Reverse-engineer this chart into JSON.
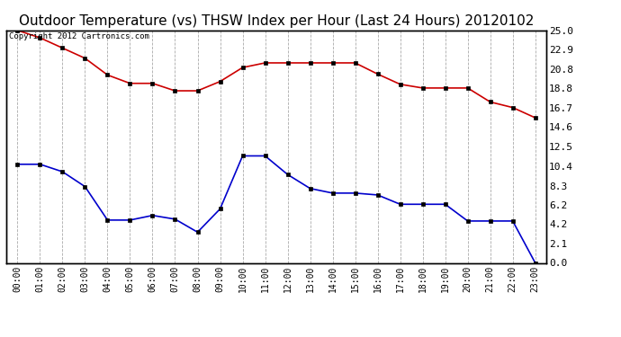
{
  "title": "Outdoor Temperature (vs) THSW Index per Hour (Last 24 Hours) 20120102",
  "copyright_text": "Copyright 2012 Cartronics.com",
  "x_labels": [
    "00:00",
    "01:00",
    "02:00",
    "03:00",
    "04:00",
    "05:00",
    "06:00",
    "07:00",
    "08:00",
    "09:00",
    "10:00",
    "11:00",
    "12:00",
    "13:00",
    "14:00",
    "15:00",
    "16:00",
    "17:00",
    "18:00",
    "19:00",
    "20:00",
    "21:00",
    "22:00",
    "23:00"
  ],
  "red_data": [
    25.0,
    24.2,
    23.1,
    22.0,
    20.2,
    19.3,
    19.3,
    18.5,
    18.5,
    19.5,
    21.0,
    21.5,
    21.5,
    21.5,
    21.5,
    21.5,
    20.3,
    19.2,
    18.8,
    18.8,
    18.8,
    17.3,
    16.7,
    15.6
  ],
  "blue_data": [
    10.6,
    10.6,
    9.8,
    8.2,
    4.6,
    4.6,
    5.1,
    4.7,
    3.3,
    5.8,
    11.5,
    11.5,
    9.5,
    8.0,
    7.5,
    7.5,
    7.3,
    6.3,
    6.3,
    6.3,
    4.5,
    4.5,
    4.5,
    0.0
  ],
  "red_color": "#cc0000",
  "blue_color": "#0000cc",
  "background_color": "#ffffff",
  "grid_color": "#aaaaaa",
  "ylim": [
    0.0,
    25.0
  ],
  "yticks_right": [
    0.0,
    2.1,
    4.2,
    6.2,
    8.3,
    10.4,
    12.5,
    14.6,
    16.7,
    18.8,
    20.8,
    22.9,
    25.0
  ],
  "title_fontsize": 11,
  "marker": "s",
  "marker_size": 3,
  "line_width": 1.2
}
